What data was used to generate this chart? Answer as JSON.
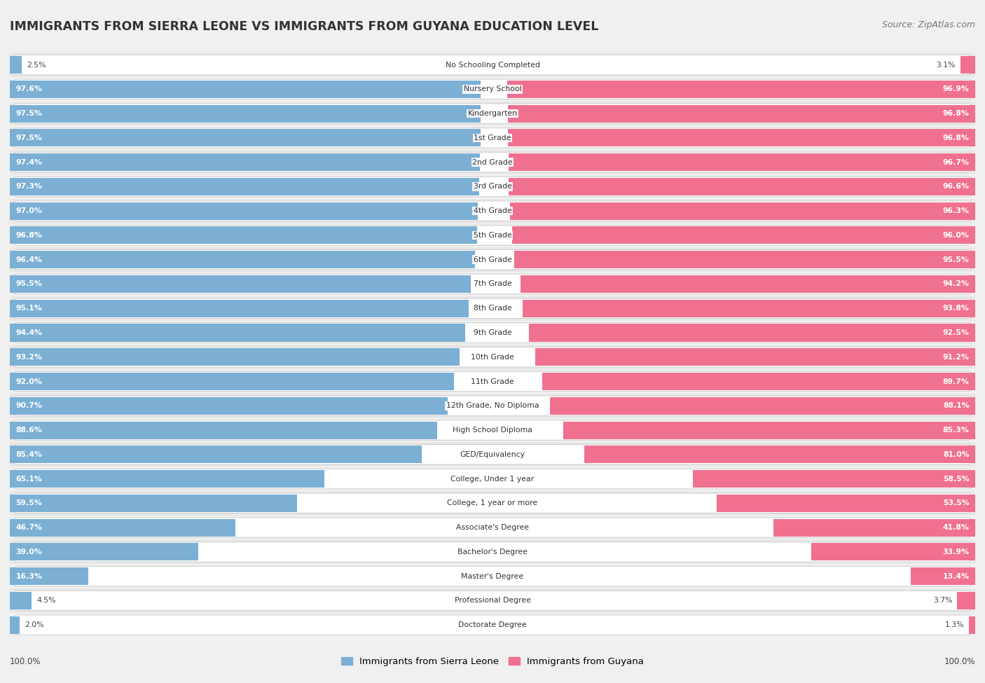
{
  "title": "IMMIGRANTS FROM SIERRA LEONE VS IMMIGRANTS FROM GUYANA EDUCATION LEVEL",
  "source": "Source: ZipAtlas.com",
  "categories": [
    "No Schooling Completed",
    "Nursery School",
    "Kindergarten",
    "1st Grade",
    "2nd Grade",
    "3rd Grade",
    "4th Grade",
    "5th Grade",
    "6th Grade",
    "7th Grade",
    "8th Grade",
    "9th Grade",
    "10th Grade",
    "11th Grade",
    "12th Grade, No Diploma",
    "High School Diploma",
    "GED/Equivalency",
    "College, Under 1 year",
    "College, 1 year or more",
    "Associate's Degree",
    "Bachelor's Degree",
    "Master's Degree",
    "Professional Degree",
    "Doctorate Degree"
  ],
  "sierra_leone": [
    2.5,
    97.6,
    97.5,
    97.5,
    97.4,
    97.3,
    97.0,
    96.8,
    96.4,
    95.5,
    95.1,
    94.4,
    93.2,
    92.0,
    90.7,
    88.6,
    85.4,
    65.1,
    59.5,
    46.7,
    39.0,
    16.3,
    4.5,
    2.0
  ],
  "guyana": [
    3.1,
    96.9,
    96.8,
    96.8,
    96.7,
    96.6,
    96.3,
    96.0,
    95.5,
    94.2,
    93.8,
    92.5,
    91.2,
    89.7,
    88.1,
    85.3,
    81.0,
    58.5,
    53.5,
    41.8,
    33.9,
    13.4,
    3.7,
    1.3
  ],
  "sierra_leone_color": "#7bafd4",
  "guyana_color": "#f07090",
  "background_color": "#f0f0f0",
  "row_color_odd": "#e8e8e8",
  "row_color_even": "#f5f5f5",
  "legend_sierra_leone": "Immigrants from Sierra Leone",
  "legend_guyana": "Immigrants from Guyana"
}
